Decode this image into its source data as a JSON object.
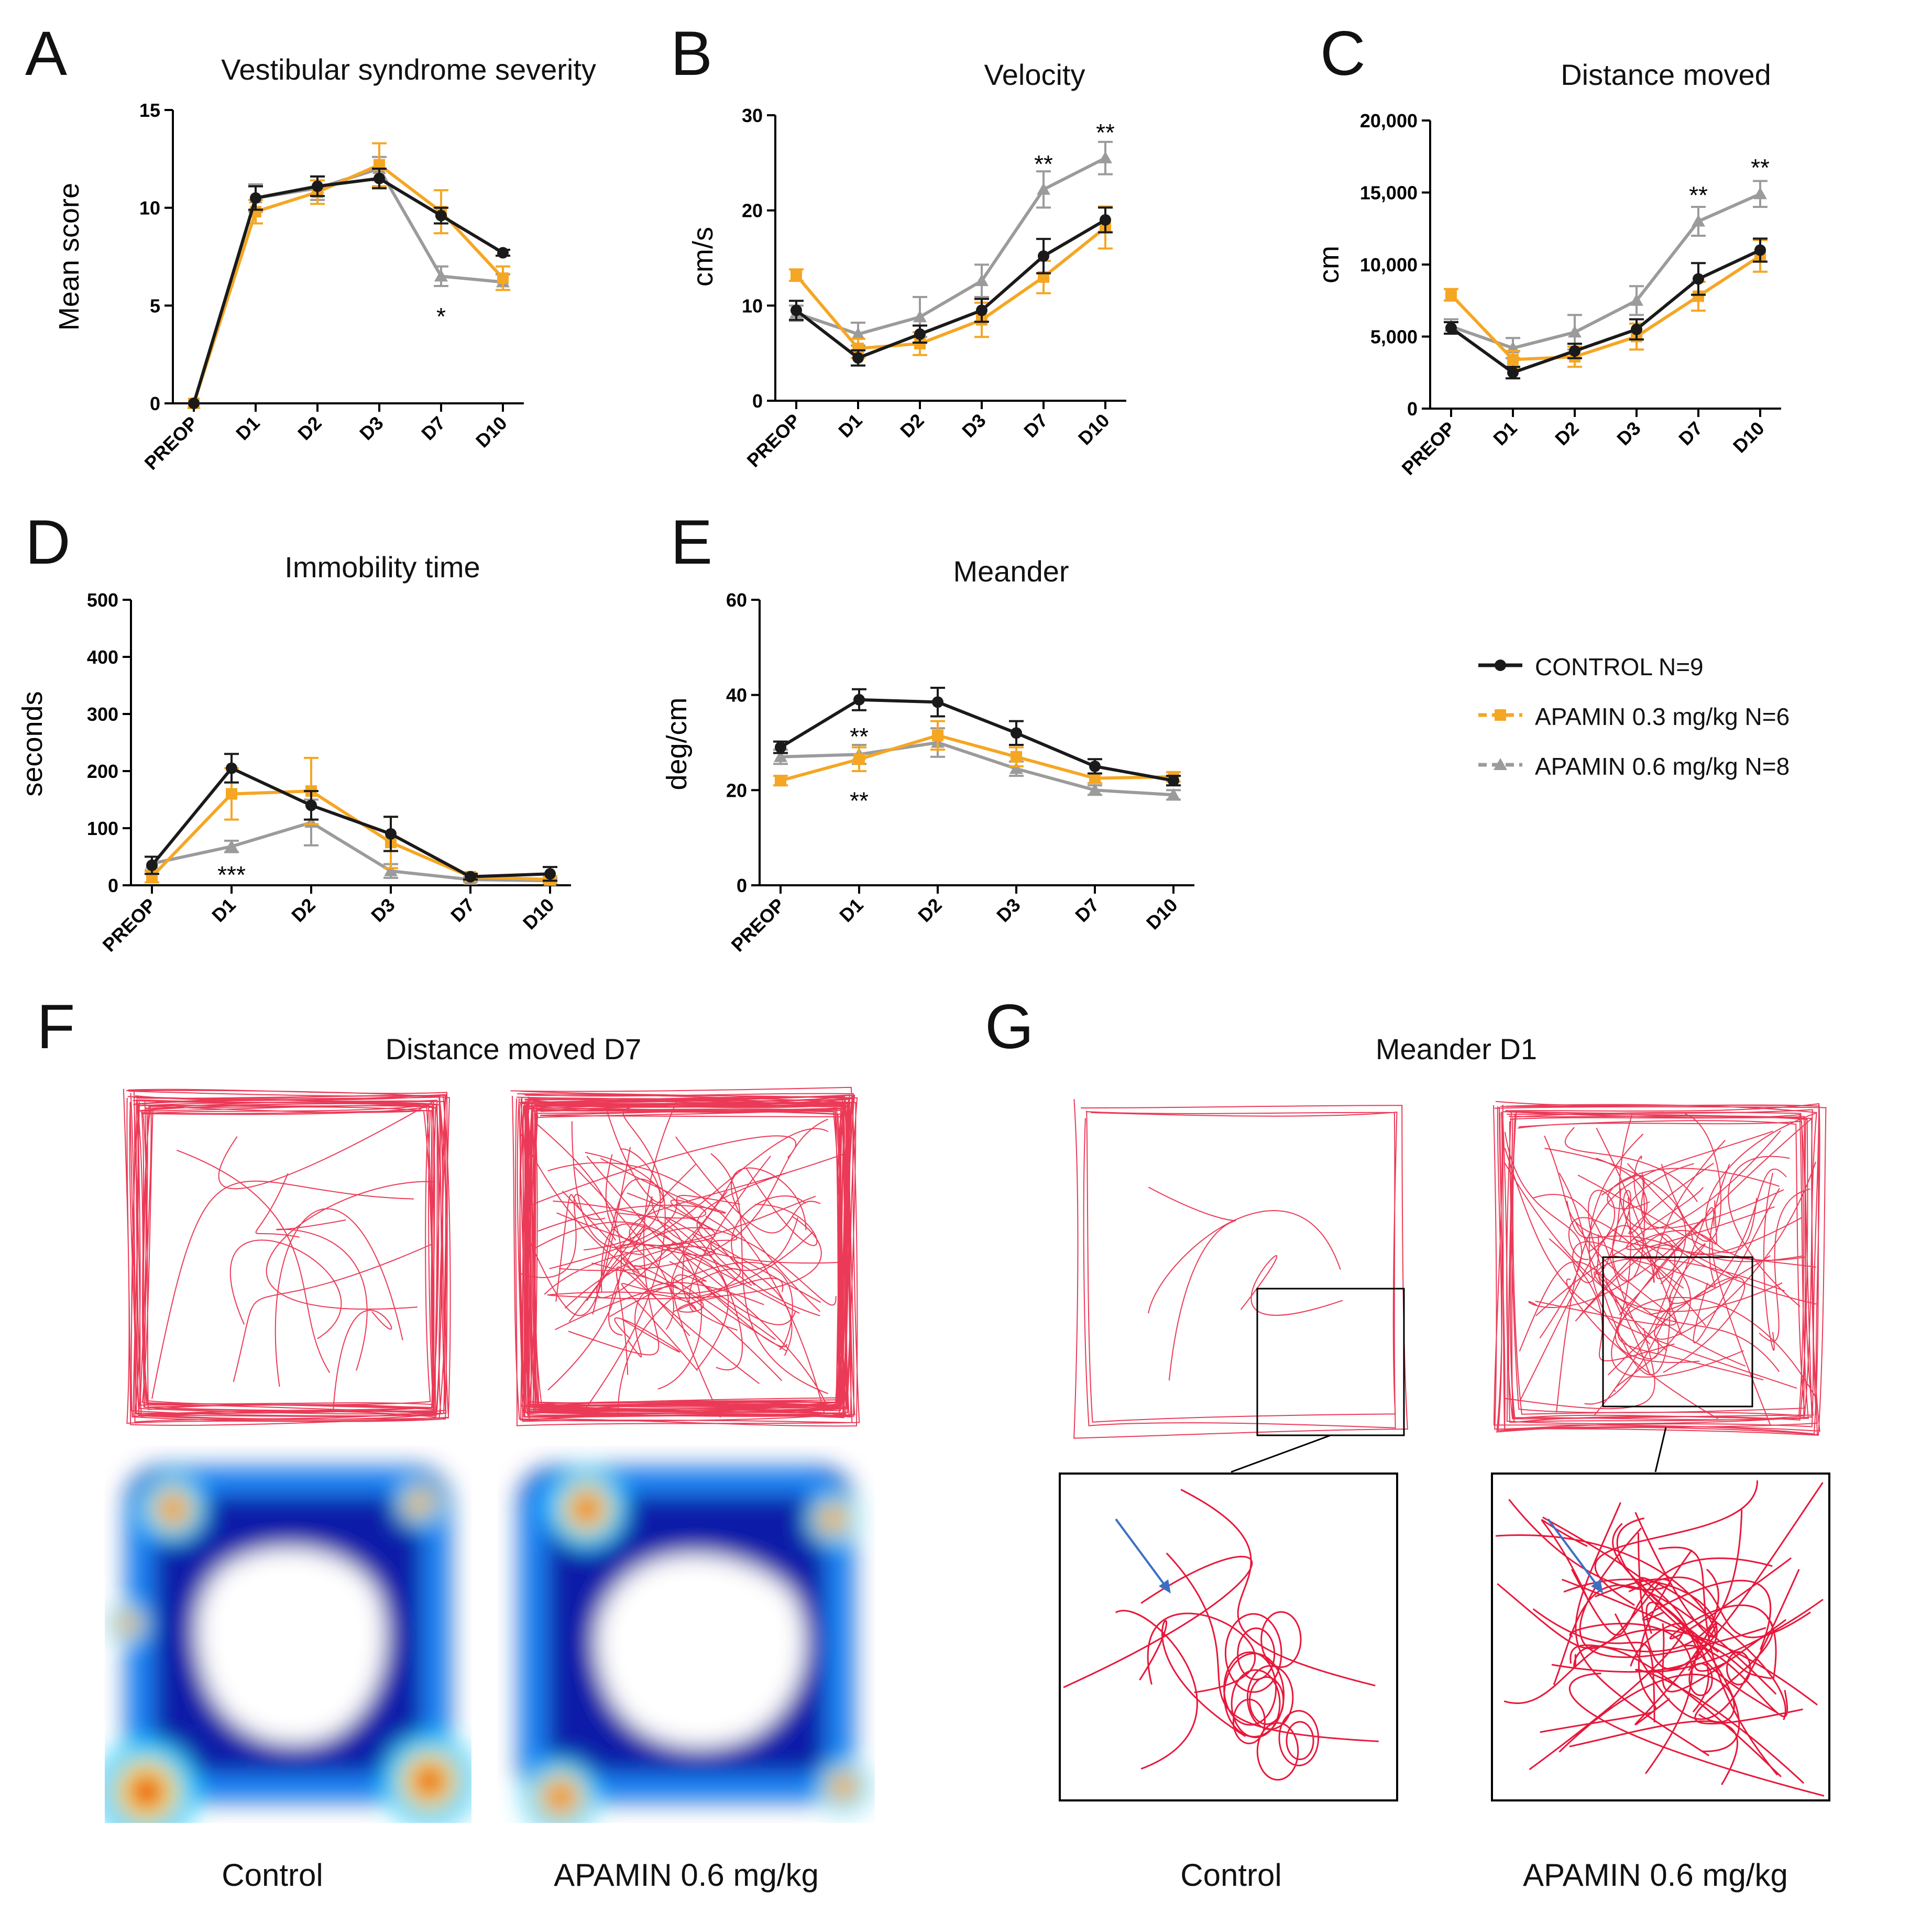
{
  "panel_letters": {
    "A": "A",
    "B": "B",
    "C": "C",
    "D": "D",
    "E": "E",
    "F": "F",
    "G": "G"
  },
  "colors": {
    "control": "#1a1a1a",
    "apamin03": "#f5a623",
    "apamin06": "#9b9b9b",
    "track": "#e8173a",
    "arrow": "#3b6fc4"
  },
  "legend": [
    {
      "label": "CONTROL N=9",
      "series": "control",
      "marker": "circle",
      "dash": false
    },
    {
      "label": "APAMIN 0.3 mg/kg N=6",
      "series": "apamin03",
      "marker": "square",
      "dash": true
    },
    {
      "label": "APAMIN 0.6 mg/kg N=8",
      "series": "apamin06",
      "marker": "triangle",
      "dash": true
    }
  ],
  "chart_data": [
    {
      "id": "A",
      "type": "line",
      "title": "Vestibular syndrome severity",
      "ylabel": "Mean score",
      "categories": [
        "PREOP",
        "D1",
        "D2",
        "D3",
        "D7",
        "D10"
      ],
      "ylim": [
        0,
        15
      ],
      "yticks": [
        0,
        5,
        10,
        15
      ],
      "ytick_labels": [
        "0",
        "5",
        "10",
        "15"
      ],
      "series": [
        {
          "key": "control",
          "values": [
            0,
            10.5,
            11.1,
            11.5,
            9.6,
            7.7
          ],
          "errors": [
            0,
            0.6,
            0.5,
            0.5,
            0.4,
            0.15
          ]
        },
        {
          "key": "apamin03",
          "values": [
            0,
            9.8,
            10.8,
            12.2,
            9.8,
            6.4
          ],
          "errors": [
            0,
            0.6,
            0.6,
            1.1,
            1.1,
            0.6
          ]
        },
        {
          "key": "apamin06",
          "values": [
            0,
            10.5,
            11.0,
            12.0,
            6.5,
            6.2
          ],
          "errors": [
            0,
            0.7,
            0.6,
            0.6,
            0.5,
            0.4
          ]
        }
      ],
      "annotations": [
        {
          "text": "*",
          "category": "D7",
          "value": 4.5
        }
      ]
    },
    {
      "id": "B",
      "type": "line",
      "title": "Velocity",
      "ylabel": "cm/s",
      "categories": [
        "PREOP",
        "D1",
        "D2",
        "D3",
        "D7",
        "D10"
      ],
      "ylim": [
        0,
        30
      ],
      "yticks": [
        0,
        10,
        20,
        30
      ],
      "ytick_labels": [
        "0",
        "10",
        "20",
        "30"
      ],
      "series": [
        {
          "key": "control",
          "values": [
            9.5,
            4.5,
            7.0,
            9.5,
            15.2,
            19.0
          ],
          "errors": [
            1.0,
            0.8,
            0.9,
            1.2,
            1.8,
            1.3
          ]
        },
        {
          "key": "apamin03",
          "values": [
            13.2,
            5.5,
            6.0,
            8.5,
            13.0,
            18.2
          ],
          "errors": [
            0.6,
            1.0,
            1.2,
            1.8,
            1.7,
            2.2
          ]
        },
        {
          "key": "apamin06",
          "values": [
            9.2,
            7.0,
            8.8,
            12.6,
            22.2,
            25.5
          ],
          "errors": [
            0.8,
            1.2,
            2.1,
            1.7,
            1.9,
            1.7
          ]
        }
      ],
      "annotations": [
        {
          "text": "**",
          "category": "D7",
          "value": 25.0
        },
        {
          "text": "**",
          "category": "D10",
          "value": 28.3
        }
      ]
    },
    {
      "id": "C",
      "type": "line",
      "title": "Distance moved",
      "ylabel": "cm",
      "categories": [
        "PREOP",
        "D1",
        "D2",
        "D3",
        "D7",
        "D10"
      ],
      "ylim": [
        0,
        20000
      ],
      "yticks": [
        0,
        5000,
        10000,
        15000,
        20000
      ],
      "ytick_labels": [
        "0",
        "5,000",
        "10,000",
        "15,000",
        "20,000"
      ],
      "series": [
        {
          "key": "control",
          "values": [
            5600,
            2500,
            4000,
            5500,
            9000,
            11000
          ],
          "errors": [
            400,
            400,
            500,
            700,
            1100,
            800
          ]
        },
        {
          "key": "apamin03",
          "values": [
            7900,
            3400,
            3600,
            5000,
            7800,
            10600
          ],
          "errors": [
            400,
            600,
            700,
            900,
            1000,
            1100
          ]
        },
        {
          "key": "apamin06",
          "values": [
            5700,
            4200,
            5300,
            7500,
            13000,
            14900
          ],
          "errors": [
            500,
            700,
            1200,
            1000,
            1000,
            900
          ]
        }
      ],
      "annotations": [
        {
          "text": "**",
          "category": "D7",
          "value": 14900
        },
        {
          "text": "**",
          "category": "D10",
          "value": 16800
        }
      ]
    },
    {
      "id": "D",
      "type": "line",
      "title": "Immobility time",
      "ylabel": "seconds",
      "categories": [
        "PREOP",
        "D1",
        "D2",
        "D3",
        "D7",
        "D10"
      ],
      "ylim": [
        0,
        500
      ],
      "yticks": [
        0,
        100,
        200,
        300,
        400,
        500
      ],
      "ytick_labels": [
        "0",
        "100",
        "200",
        "300",
        "400",
        "500"
      ],
      "series": [
        {
          "key": "control",
          "values": [
            35,
            205,
            140,
            90,
            15,
            20
          ],
          "errors": [
            15,
            25,
            25,
            30,
            5,
            12
          ]
        },
        {
          "key": "apamin03",
          "values": [
            15,
            160,
            165,
            75,
            15,
            10
          ],
          "errors": [
            10,
            45,
            58,
            45,
            6,
            6
          ]
        },
        {
          "key": "apamin06",
          "values": [
            38,
            68,
            110,
            25,
            10,
            8
          ],
          "errors": [
            12,
            10,
            40,
            12,
            4,
            4
          ]
        }
      ],
      "annotations": [
        {
          "text": "***",
          "category": "D1",
          "value": 20
        }
      ]
    },
    {
      "id": "E",
      "type": "line",
      "title": "Meander",
      "ylabel": "deg/cm",
      "categories": [
        "PREOP",
        "D1",
        "D2",
        "D3",
        "D7",
        "D10"
      ],
      "ylim": [
        0,
        60
      ],
      "yticks": [
        0,
        20,
        40,
        60
      ],
      "ytick_labels": [
        "0",
        "20",
        "40",
        "60"
      ],
      "series": [
        {
          "key": "control",
          "values": [
            29,
            39,
            38.5,
            32,
            25,
            22
          ],
          "errors": [
            1.2,
            2.2,
            3.0,
            2.5,
            1.5,
            1.0
          ]
        },
        {
          "key": "apamin03",
          "values": [
            22,
            26.5,
            31.5,
            27,
            22.5,
            22.8
          ],
          "errors": [
            1.0,
            2.5,
            3.0,
            2.0,
            1.0,
            1.0
          ]
        },
        {
          "key": "apamin06",
          "values": [
            27,
            27.5,
            30,
            24.5,
            20,
            19
          ],
          "errors": [
            1.5,
            2.0,
            3.0,
            1.5,
            1.0,
            1.0
          ]
        }
      ],
      "annotations": [
        {
          "text": "**",
          "category": "D1",
          "value": 31.5
        },
        {
          "text": "**",
          "category": "D1",
          "value": 18.0
        }
      ]
    }
  ],
  "panel_F": {
    "title": "Distance moved D7",
    "captions": [
      "Control",
      "APAMIN 0.6 mg/kg"
    ]
  },
  "panel_G": {
    "title": "Meander D1",
    "captions": [
      "Control",
      "APAMIN 0.6 mg/kg"
    ]
  }
}
